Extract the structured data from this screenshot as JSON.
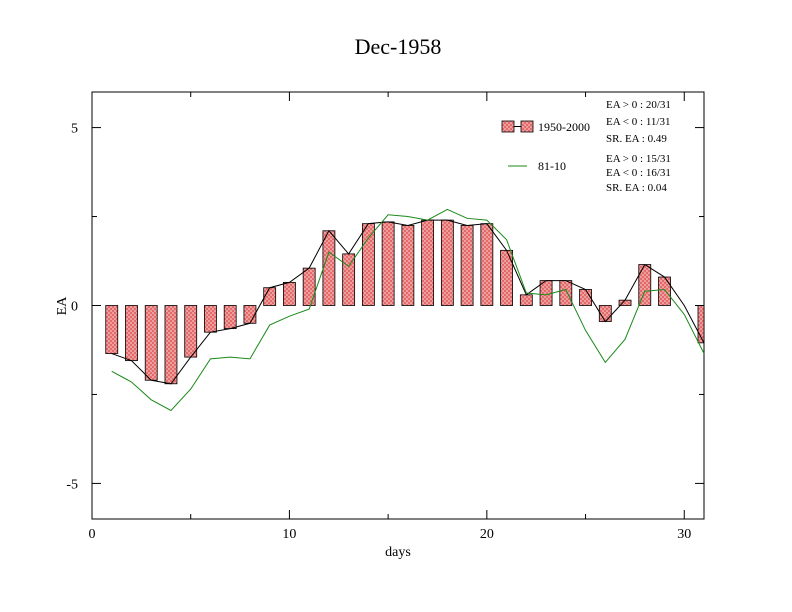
{
  "chart_data": {
    "type": "bar",
    "title": "Dec-1958",
    "xlabel": "days",
    "ylabel": "EA",
    "xlim": [
      0,
      31
    ],
    "ylim": [
      -6,
      6
    ],
    "xticks": [
      0,
      10,
      20,
      30
    ],
    "yticks": [
      5,
      0,
      -5
    ],
    "xtick_labels": [
      "0",
      "10",
      "20",
      "30"
    ],
    "ytick_labels": [
      "5",
      "0",
      "-5"
    ],
    "x": [
      1,
      2,
      3,
      4,
      5,
      6,
      7,
      8,
      9,
      10,
      11,
      12,
      13,
      14,
      15,
      16,
      17,
      18,
      19,
      20,
      21,
      22,
      23,
      24,
      25,
      26,
      27,
      28,
      29,
      30,
      31
    ],
    "series": [
      {
        "name": "1950-2000",
        "kind": "bar",
        "color": "#e07070",
        "values": [
          -1.35,
          -1.55,
          -2.1,
          -2.2,
          -1.45,
          -0.75,
          -0.65,
          -0.5,
          0.5,
          0.65,
          1.05,
          2.1,
          1.45,
          2.3,
          2.35,
          2.25,
          2.4,
          2.4,
          2.25,
          2.3,
          1.55,
          0.3,
          0.7,
          0.7,
          0.45,
          -0.45,
          0.15,
          1.15,
          0.8,
          0.0,
          -1.05
        ]
      },
      {
        "name": "81-10",
        "kind": "line",
        "color": "#1a8a1a",
        "values": [
          -1.85,
          -2.15,
          -2.65,
          -2.95,
          -2.35,
          -1.5,
          -1.45,
          -1.5,
          -0.55,
          -0.3,
          -0.1,
          1.5,
          1.1,
          1.9,
          2.55,
          2.5,
          2.4,
          2.7,
          2.45,
          2.4,
          1.85,
          0.35,
          0.3,
          0.45,
          -0.7,
          -1.6,
          -0.95,
          0.4,
          0.45,
          -0.25,
          -1.35
        ]
      }
    ],
    "legend": {
      "placement": "top-right",
      "entries": [
        "1950-2000",
        "81-10"
      ]
    },
    "stats": {
      "bars": [
        "EA > 0 : 20/31",
        "EA < 0 : 11/31",
        "SR. EA :  0.49"
      ],
      "line": [
        "EA > 0 : 15/31",
        "EA < 0 : 16/31",
        "SR. EA :  0.04"
      ]
    },
    "grid": false
  }
}
